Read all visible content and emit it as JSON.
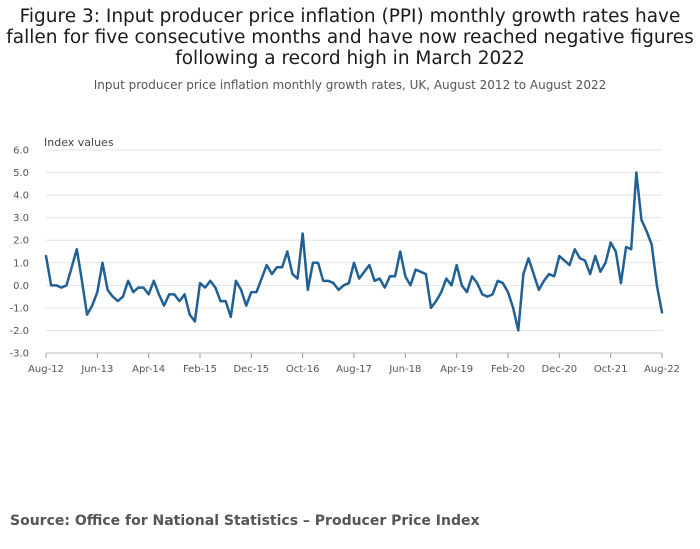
{
  "chart_data": {
    "type": "line",
    "title_lines": [
      "Figure 3: Input producer price inflation (PPI) monthly growth rates have",
      "fallen for five consecutive months and have now reached negative figures",
      "following a record high in March 2022"
    ],
    "subtitle": "Input producer price inflation monthly growth rates, UK, August 2012 to August 2022",
    "ylabel": "Index values",
    "xlabel": "",
    "ylim": [
      -3.0,
      6.0
    ],
    "y_ticks": [
      "6.0",
      "5.0",
      "4.0",
      "3.0",
      "2.0",
      "1.0",
      "0.0",
      "-1.0",
      "-2.0",
      "-3.0"
    ],
    "x_ticks": [
      {
        "label": "Aug-12",
        "index": 0
      },
      {
        "label": "Jun-13",
        "index": 10
      },
      {
        "label": "Apr-14",
        "index": 20
      },
      {
        "label": "Feb-15",
        "index": 30
      },
      {
        "label": "Dec-15",
        "index": 40
      },
      {
        "label": "Oct-16",
        "index": 50
      },
      {
        "label": "Aug-17",
        "index": 60
      },
      {
        "label": "Jun-18",
        "index": 70
      },
      {
        "label": "Apr-19",
        "index": 80
      },
      {
        "label": "Feb-20",
        "index": 90
      },
      {
        "label": "Dec-20",
        "index": 100
      },
      {
        "label": "Oct-21",
        "index": 110
      },
      {
        "label": "Aug-22",
        "index": 120
      }
    ],
    "series": [
      {
        "name": "Input PPI monthly growth rate",
        "color": "#206095",
        "values": [
          1.3,
          0.0,
          0.0,
          -0.1,
          0.0,
          0.8,
          1.6,
          0.2,
          -1.3,
          -0.9,
          -0.3,
          1.0,
          -0.2,
          -0.5,
          -0.7,
          -0.5,
          0.2,
          -0.3,
          -0.1,
          -0.1,
          -0.4,
          0.2,
          -0.4,
          -0.9,
          -0.4,
          -0.4,
          -0.7,
          -0.4,
          -1.3,
          -1.6,
          0.1,
          -0.1,
          0.2,
          -0.1,
          -0.7,
          -0.7,
          -1.4,
          0.2,
          -0.2,
          -0.9,
          -0.3,
          -0.3,
          0.3,
          0.9,
          0.5,
          0.8,
          0.8,
          1.5,
          0.5,
          0.3,
          2.3,
          -0.2,
          1.0,
          1.0,
          0.2,
          0.2,
          0.1,
          -0.2,
          0.0,
          0.1,
          1.0,
          0.3,
          0.6,
          0.9,
          0.2,
          0.3,
          -0.1,
          0.4,
          0.4,
          1.5,
          0.4,
          0.0,
          0.7,
          0.6,
          0.5,
          -1.0,
          -0.7,
          -0.3,
          0.3,
          0.0,
          0.9,
          0.0,
          -0.3,
          0.4,
          0.1,
          -0.4,
          -0.5,
          -0.4,
          0.2,
          0.1,
          -0.3,
          -1.0,
          -2.0,
          0.5,
          1.2,
          0.5,
          -0.2,
          0.2,
          0.5,
          0.4,
          1.3,
          1.1,
          0.9,
          1.6,
          1.2,
          1.1,
          0.5,
          1.3,
          0.6,
          1.0,
          1.9,
          1.5,
          0.1,
          1.7,
          1.6,
          5.0,
          2.9,
          2.4,
          1.8,
          0.0,
          -1.2
        ]
      }
    ]
  },
  "source": "Source: Office for National Statistics – Producer Price Index"
}
